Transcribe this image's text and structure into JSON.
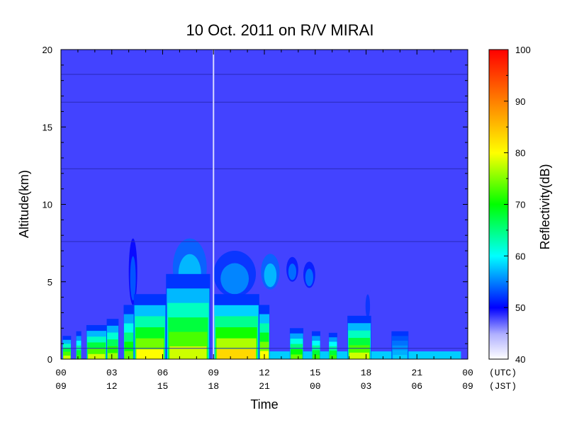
{
  "chart_data": {
    "type": "heatmap",
    "title": "10 Oct. 2011  on R/V MIRAI",
    "xlabel": "Time",
    "ylabel": "Altitude(km)",
    "colorbar_label": "Reflectivity(dB)",
    "xlim": [
      0,
      24
    ],
    "ylim": [
      0,
      20
    ],
    "x_ticks_utc": [
      "00",
      "03",
      "06",
      "09",
      "12",
      "15",
      "18",
      "21",
      "00"
    ],
    "x_ticks_jst": [
      "09",
      "12",
      "15",
      "18",
      "21",
      "00",
      "03",
      "06",
      "09"
    ],
    "x_tick_values_hours": [
      0,
      3,
      6,
      9,
      12,
      15,
      18,
      21,
      24
    ],
    "timezone_labels": [
      "(UTC)",
      "(JST)"
    ],
    "y_ticks": [
      0,
      5,
      10,
      15,
      20
    ],
    "colorbar_range": [
      40,
      100
    ],
    "colorbar_ticks": [
      40,
      50,
      60,
      70,
      80,
      90,
      100
    ],
    "colormap": [
      "#ffffff",
      "#7070ff",
      "#0000ff",
      "#00ffff",
      "#00ff00",
      "#ffff00",
      "#ff8000",
      "#ff0000"
    ],
    "background_reflectivity_db": 48,
    "data_gap_time_hours": 9.0,
    "horizontal_artifact_altitudes_km": [
      18.4,
      16.6,
      12.3,
      7.6,
      0.7
    ],
    "echo_columns": [
      {
        "t_start": 0.1,
        "t_end": 0.6,
        "top_km": 1.5,
        "peak_db": 78
      },
      {
        "t_start": 0.9,
        "t_end": 1.2,
        "top_km": 1.8,
        "peak_db": 72
      },
      {
        "t_start": 1.5,
        "t_end": 2.7,
        "top_km": 2.2,
        "peak_db": 78
      },
      {
        "t_start": 2.7,
        "t_end": 3.4,
        "top_km": 2.6,
        "peak_db": 76
      },
      {
        "t_start": 3.7,
        "t_end": 4.3,
        "top_km": 3.5,
        "peak_db": 74
      },
      {
        "t_start": 4.3,
        "t_end": 6.2,
        "top_km": 4.2,
        "peak_db": 80
      },
      {
        "t_start": 6.2,
        "t_end": 8.8,
        "top_km": 5.5,
        "peak_db": 78
      },
      {
        "t_start": 9.0,
        "t_end": 11.7,
        "top_km": 4.2,
        "peak_db": 83
      },
      {
        "t_start": 11.7,
        "t_end": 12.3,
        "top_km": 3.5,
        "peak_db": 80
      },
      {
        "t_start": 13.5,
        "t_end": 14.3,
        "top_km": 2.0,
        "peak_db": 74
      },
      {
        "t_start": 14.8,
        "t_end": 15.3,
        "top_km": 1.8,
        "peak_db": 72
      },
      {
        "t_start": 15.8,
        "t_end": 16.3,
        "top_km": 1.7,
        "peak_db": 72
      },
      {
        "t_start": 16.9,
        "t_end": 18.3,
        "top_km": 2.8,
        "peak_db": 78
      },
      {
        "t_start": 19.5,
        "t_end": 20.5,
        "top_km": 1.8,
        "peak_db": 58
      }
    ],
    "elevated_echoes": [
      {
        "t_start": 4.0,
        "t_end": 4.5,
        "base_km": 3.5,
        "top_km": 7.8,
        "peak_db": 54
      },
      {
        "t_start": 6.6,
        "t_end": 8.6,
        "base_km": 4.0,
        "top_km": 7.8,
        "peak_db": 58
      },
      {
        "t_start": 9.0,
        "t_end": 11.5,
        "base_km": 4.0,
        "top_km": 7.0,
        "peak_db": 56
      },
      {
        "t_start": 11.8,
        "t_end": 12.9,
        "base_km": 4.5,
        "top_km": 6.8,
        "peak_db": 58
      },
      {
        "t_start": 13.3,
        "t_end": 14.0,
        "base_km": 5.0,
        "top_km": 6.6,
        "peak_db": 55
      },
      {
        "t_start": 14.3,
        "t_end": 15.0,
        "base_km": 4.6,
        "top_km": 6.3,
        "peak_db": 55
      },
      {
        "t_start": 17.9,
        "t_end": 18.3,
        "base_km": 2.5,
        "top_km": 4.8,
        "peak_db": 52
      }
    ],
    "surface_layer": {
      "t_start": 12.3,
      "t_end": 23.6,
      "top_km": 0.5,
      "peak_db": 58
    }
  }
}
